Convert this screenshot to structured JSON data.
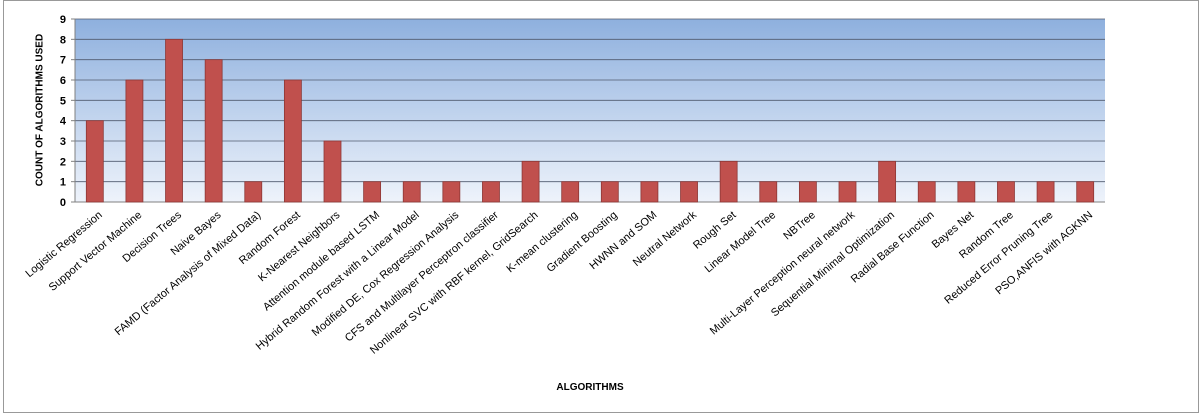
{
  "chart_data": {
    "type": "bar",
    "y_label": "COUNT OF ALGORITHMS  USED",
    "x_label": "ALGORITHMS",
    "categories": [
      "Logistic Regression",
      "Support Vector Machine",
      "Decision Trees",
      "Naive Bayes",
      "FAMD (Factor Analysis of Mixed Data)",
      "Random Forest",
      "K-Nearest Neighbors",
      "Attention module based LSTM",
      "Hybrid Random Forest with a Linear Model",
      "Modified DE, Cox Regression Analysis",
      "CFS and Multilayer Perceptron classifier",
      "Nonlinear SVC with RBF kernel, GridSearch",
      "K-mean clustering",
      "Gradient Boosting",
      "HWNN and SOM",
      "Neutral Network",
      "Rough Set",
      "Linear Model Tree",
      "NBTree",
      "Multi-Layer Perception neural network",
      "Sequential Minimal Optimization",
      "Radial Base Function",
      "Bayes Net",
      "Random Tree",
      "Reduced Error Pruning Tree",
      "PSO,ANFIS with AGKNN"
    ],
    "values": [
      4,
      6,
      8,
      7,
      1,
      6,
      3,
      1,
      1,
      1,
      1,
      2,
      1,
      1,
      1,
      1,
      2,
      1,
      1,
      1,
      2,
      1,
      1,
      1,
      1,
      1
    ],
    "color": "#c0504d",
    "ylim": [
      0,
      9
    ],
    "yticks": [
      0,
      1,
      2,
      3,
      4,
      5,
      6,
      7,
      8,
      9
    ],
    "grid": true
  }
}
